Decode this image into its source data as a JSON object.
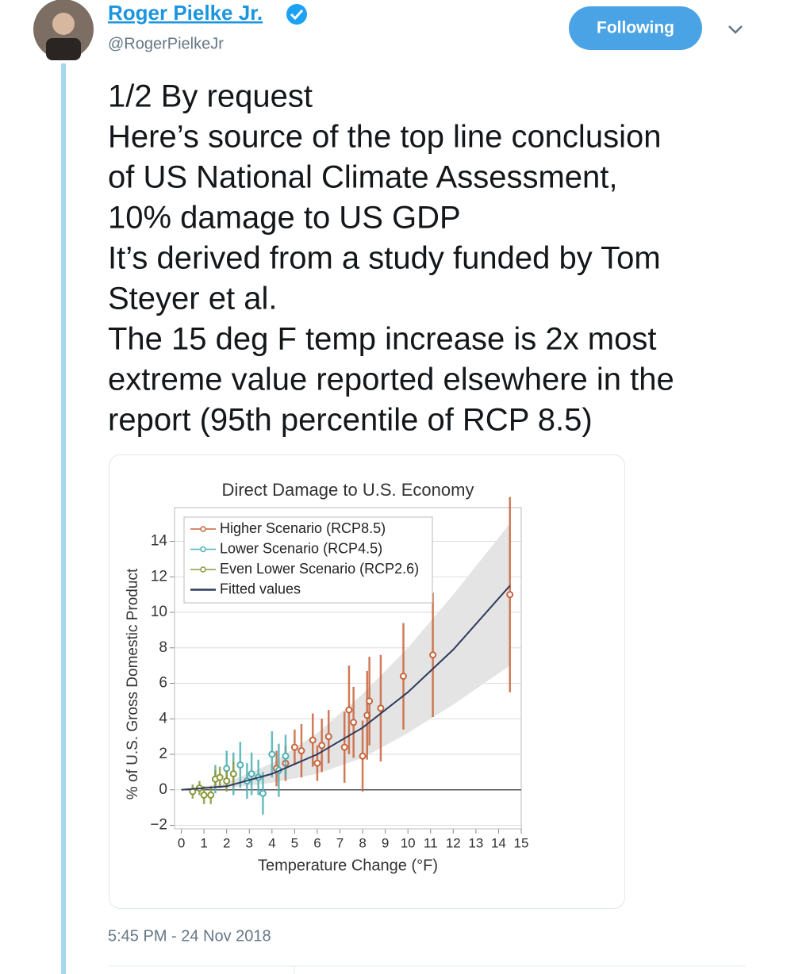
{
  "tweet": {
    "name": "Roger Pielke Jr.",
    "handle": "@RogerPielkeJr",
    "follow_button": "Following",
    "text_lines": [
      "1/2 By request",
      "Here’s source of the top line conclusion",
      "of US National Climate Assessment,",
      "10% damage to US GDP",
      "It’s derived from a study funded by Tom",
      "Steyer et al.",
      "The 15 deg F temp increase is 2x most",
      "extreme value reported elsewhere in the",
      "report (95th percentile of RCP 8.5)"
    ],
    "timestamp": "5:45 PM - 24 Nov 2018"
  },
  "chart_data": {
    "type": "scatter",
    "title": "Direct Damage to U.S. Economy",
    "x_label": "Temperature Change (°F)",
    "y_label": "% of U.S. Gross Domestic Product",
    "xlim": [
      -0.3,
      15
    ],
    "ylim": [
      -2.2,
      15.9
    ],
    "xticks": [
      0,
      1,
      2,
      3,
      4,
      5,
      6,
      7,
      8,
      9,
      10,
      11,
      12,
      13,
      14,
      15
    ],
    "yticks": [
      {
        "value": -2,
        "label": "−2"
      },
      0,
      2,
      4,
      6,
      8,
      10,
      12,
      14
    ],
    "grid": true,
    "series": [
      {
        "name": "Higher Scenario (RCP8.5)",
        "color": "#c8643a",
        "x": [
          4.2,
          4.6,
          5.0,
          5.3,
          5.8,
          6.0,
          6.2,
          6.5,
          7.2,
          7.4,
          7.6,
          8.0,
          8.2,
          8.3,
          8.8,
          9.8,
          11.1,
          14.5
        ],
        "values": [
          1.2,
          1.5,
          2.4,
          2.2,
          2.8,
          1.5,
          2.5,
          3.0,
          2.4,
          4.5,
          3.8,
          1.9,
          4.2,
          5.0,
          4.6,
          6.4,
          7.6,
          11.0
        ],
        "errors": [
          1,
          1,
          1,
          1.5,
          1.5,
          1,
          1.5,
          1.5,
          2,
          2.5,
          2,
          2,
          2.5,
          2.5,
          3,
          3,
          3.5,
          5.5
        ]
      },
      {
        "name": "Lower Scenario (RCP4.5)",
        "color": "#4fb0b5",
        "x": [
          1.5,
          2.0,
          2.3,
          2.6,
          2.9,
          3.1,
          3.4,
          3.6,
          4.0,
          4.3,
          4.6
        ],
        "values": [
          0.6,
          1.2,
          0.9,
          1.4,
          0.5,
          0.9,
          0.7,
          -0.2,
          2.0,
          1.1,
          1.9
        ],
        "errors": [
          0.8,
          1,
          1.2,
          1.3,
          1,
          1.2,
          1,
          1.2,
          1.3,
          1.5,
          1.2
        ]
      },
      {
        "name": "Even Lower Scenario (RCP2.6)",
        "color": "#8a9a3a",
        "x": [
          0.5,
          0.8,
          1.0,
          1.3,
          1.5,
          1.7,
          2.0,
          2.3
        ],
        "values": [
          -0.1,
          0.1,
          -0.3,
          -0.3,
          0.6,
          0.7,
          0.5,
          0.9
        ],
        "errors": [
          0.4,
          0.4,
          0.5,
          0.5,
          0.5,
          0.6,
          0.6,
          0.7
        ]
      },
      {
        "name": "Fitted values",
        "color": "#2f3a5c",
        "band_color": "#e4e4e4",
        "x": [
          0,
          2,
          4,
          6,
          8,
          10,
          12,
          14.5
        ],
        "values": [
          0,
          0.2,
          0.9,
          2,
          3.5,
          5.5,
          7.9,
          11.5
        ],
        "lower": [
          0,
          0.1,
          0.4,
          0.9,
          1.8,
          3.2,
          4.8,
          7.0
        ],
        "upper": [
          0,
          0.4,
          1.5,
          3.2,
          5.4,
          8.0,
          11.0,
          15.0
        ]
      }
    ]
  }
}
